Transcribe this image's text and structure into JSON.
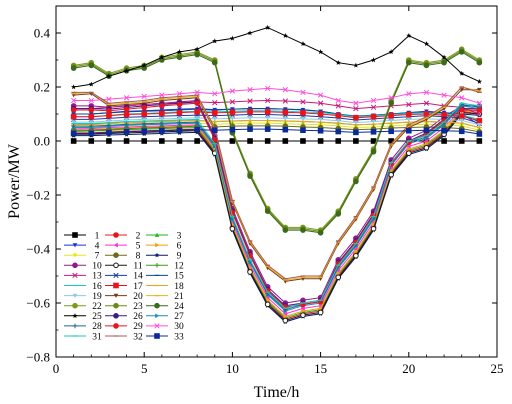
{
  "chart_data": {
    "type": "line",
    "title": "",
    "xlabel": "Time/h",
    "ylabel": "Power/MW",
    "xlim": [
      0,
      25
    ],
    "ylim": [
      -0.8,
      0.5
    ],
    "xticks": [
      0,
      5,
      10,
      15,
      20,
      25
    ],
    "yticks": [
      -0.8,
      -0.6,
      -0.4,
      -0.2,
      0.0,
      0.2,
      0.4
    ],
    "ytick_labels": [
      "−0.8",
      "−0.6",
      "−0.4",
      "−0.2",
      "0.0",
      "0.2",
      "0.4"
    ],
    "grid": false,
    "legend_position": "lower-left",
    "x": [
      1,
      2,
      3,
      4,
      5,
      6,
      7,
      8,
      9,
      10,
      11,
      12,
      13,
      14,
      15,
      16,
      17,
      18,
      19,
      20,
      21,
      22,
      23,
      24
    ],
    "series": [
      {
        "name": "1",
        "color": "#000000",
        "marker": "square",
        "values": [
          0,
          0,
          0,
          0,
          0,
          0,
          0,
          0,
          0,
          0,
          0,
          0,
          0,
          0,
          0,
          0,
          0,
          0,
          0,
          0,
          0,
          0,
          0,
          0
        ]
      },
      {
        "name": "2",
        "color": "#e8141c",
        "marker": "circle",
        "values": [
          0.03,
          0.03,
          0.034,
          0.036,
          0.038,
          0.04,
          0.042,
          0.044,
          -0.04,
          -0.32,
          -0.48,
          -0.6,
          -0.66,
          -0.64,
          -0.63,
          -0.5,
          -0.42,
          -0.32,
          -0.12,
          -0.04,
          -0.02,
          0.03,
          0.11,
          0.1
        ]
      },
      {
        "name": "3",
        "color": "#1fb61f",
        "marker": "triangle-up",
        "values": [
          0.035,
          0.037,
          0.04,
          0.042,
          0.044,
          0.046,
          0.048,
          0.05,
          -0.035,
          -0.315,
          -0.475,
          -0.595,
          -0.655,
          -0.635,
          -0.625,
          -0.495,
          -0.415,
          -0.315,
          -0.115,
          -0.035,
          -0.015,
          0.035,
          0.115,
          0.105
        ]
      },
      {
        "name": "4",
        "color": "#1a2eda",
        "marker": "triangle-down",
        "values": [
          0.1,
          0.1,
          0.105,
          0.11,
          0.112,
          0.115,
          0.118,
          0.12,
          0.116,
          0.118,
          0.12,
          0.12,
          0.118,
          0.116,
          0.11,
          0.1,
          0.09,
          0.095,
          0.1,
          0.105,
          0.11,
          0.105,
          0.1,
          0.06
        ]
      },
      {
        "name": "5",
        "color": "#ff2fd0",
        "marker": "triangle-left",
        "values": [
          0.045,
          0.046,
          0.05,
          0.052,
          0.054,
          0.056,
          0.058,
          0.06,
          -0.025,
          -0.3,
          -0.46,
          -0.58,
          -0.64,
          -0.62,
          -0.61,
          -0.48,
          -0.4,
          -0.3,
          -0.1,
          -0.02,
          0,
          0.05,
          0.12,
          0.11
        ]
      },
      {
        "name": "6",
        "color": "#f39c12",
        "marker": "triangle-right",
        "values": [
          0.04,
          0.041,
          0.045,
          0.048,
          0.05,
          0.052,
          0.054,
          0.056,
          -0.03,
          -0.31,
          -0.47,
          -0.59,
          -0.65,
          -0.63,
          -0.62,
          -0.49,
          -0.41,
          -0.31,
          -0.11,
          -0.03,
          -0.01,
          0.04,
          0.115,
          0.105
        ]
      },
      {
        "name": "7",
        "color": "#e6e61a",
        "marker": "triangle-down",
        "values": [
          0.05,
          0.052,
          0.055,
          0.058,
          0.06,
          0.062,
          0.064,
          0.066,
          0.062,
          0.064,
          0.066,
          0.066,
          0.064,
          0.062,
          0.06,
          0.056,
          0.05,
          0.052,
          0.056,
          0.06,
          0.062,
          0.06,
          0.056,
          0.04
        ]
      },
      {
        "name": "8",
        "color": "#6b6b1a",
        "marker": "circle",
        "values": [
          0.04,
          0.04,
          0.043,
          0.046,
          0.048,
          0.05,
          0.052,
          0.055,
          0.052,
          0.055,
          0.056,
          0.056,
          0.055,
          0.052,
          0.05,
          0.046,
          0.042,
          0.044,
          0.048,
          0.05,
          0.052,
          0.05,
          0.046,
          0.034
        ]
      },
      {
        "name": "9",
        "color": "#0a1a6b",
        "marker": "star",
        "values": [
          0.02,
          0.02,
          0.022,
          0.024,
          0.026,
          0.028,
          0.03,
          0.032,
          -0.05,
          -0.33,
          -0.49,
          -0.61,
          -0.67,
          -0.65,
          -0.64,
          -0.51,
          -0.43,
          -0.33,
          -0.13,
          -0.05,
          -0.03,
          0.02,
          0.1,
          0.095
        ]
      },
      {
        "name": "10",
        "color": "#8e1a8e",
        "marker": "circle",
        "values": [
          0.13,
          0.13,
          0.125,
          0.13,
          0.135,
          0.14,
          0.145,
          0.15,
          0.02,
          -0.25,
          -0.41,
          -0.54,
          -0.6,
          -0.59,
          -0.58,
          -0.44,
          -0.36,
          -0.26,
          -0.07,
          0.01,
          0.04,
          0.09,
          0.13,
          0.13
        ]
      },
      {
        "name": "11",
        "color": "#1a1a1a",
        "marker": "circle-open",
        "values": [
          0.025,
          0.025,
          0.028,
          0.03,
          0.032,
          0.034,
          0.036,
          0.038,
          -0.045,
          -0.325,
          -0.485,
          -0.605,
          -0.665,
          -0.645,
          -0.635,
          -0.505,
          -0.425,
          -0.325,
          -0.125,
          -0.045,
          -0.025,
          0.025,
          0.105,
          0.1
        ]
      },
      {
        "name": "12",
        "color": "#3aa01a",
        "marker": "plus",
        "values": [
          0.06,
          0.062,
          0.065,
          0.068,
          0.07,
          0.072,
          0.074,
          0.076,
          0.072,
          0.074,
          0.076,
          0.076,
          0.074,
          0.072,
          0.07,
          0.066,
          0.06,
          0.062,
          0.066,
          0.07,
          0.072,
          0.07,
          0.066,
          0.05
        ]
      },
      {
        "name": "13",
        "color": "#c81a78",
        "marker": "x",
        "values": [
          0.12,
          0.12,
          0.125,
          0.13,
          0.135,
          0.14,
          0.142,
          0.145,
          0.142,
          0.145,
          0.148,
          0.15,
          0.148,
          0.145,
          0.14,
          0.13,
          0.12,
          0.125,
          0.13,
          0.135,
          0.14,
          0.13,
          0.125,
          0.1
        ]
      },
      {
        "name": "14",
        "color": "#1a3aa8",
        "marker": "x",
        "values": [
          0.08,
          0.08,
          0.084,
          0.088,
          0.09,
          0.092,
          0.094,
          0.096,
          0.094,
          0.096,
          0.098,
          0.098,
          0.096,
          0.094,
          0.09,
          0.085,
          0.078,
          0.082,
          0.086,
          0.09,
          0.094,
          0.09,
          0.086,
          0.065
        ]
      },
      {
        "name": "15",
        "color": "#0e4a8c",
        "marker": "dash",
        "values": [
          0.1,
          0.1,
          0.104,
          0.108,
          0.11,
          0.112,
          0.115,
          0.118,
          0.114,
          0.118,
          0.12,
          0.12,
          0.118,
          0.115,
          0.11,
          0.1,
          0.092,
          0.096,
          0.1,
          0.105,
          0.108,
          0.104,
          0.1,
          0.07
        ]
      },
      {
        "name": "16",
        "color": "#1ac8c8",
        "marker": "dash",
        "values": [
          0.09,
          0.09,
          0.095,
          0.1,
          0.102,
          0.105,
          0.108,
          0.11,
          0.108,
          0.11,
          0.112,
          0.112,
          0.11,
          0.108,
          0.105,
          0.098,
          0.09,
          0.094,
          0.098,
          0.102,
          0.105,
          0.1,
          0.096,
          0.08
        ]
      },
      {
        "name": "17",
        "color": "#e8141c",
        "marker": "square",
        "values": [
          0.09,
          0.09,
          0.094,
          0.098,
          0.1,
          0.102,
          0.105,
          0.108,
          0.104,
          0.106,
          0.108,
          0.108,
          0.106,
          0.104,
          0.1,
          0.094,
          0.086,
          0.09,
          0.094,
          0.098,
          0.1,
          0.096,
          0.092,
          0.075
        ]
      },
      {
        "name": "18",
        "color": "#f5a31a",
        "marker": "dash",
        "values": [
          0.06,
          0.06,
          0.064,
          0.068,
          0.07,
          0.072,
          0.074,
          0.076,
          0.072,
          0.074,
          0.076,
          0.076,
          0.074,
          0.072,
          0.07,
          0.065,
          0.06,
          0.062,
          0.066,
          0.07,
          0.072,
          0.07,
          0.066,
          0.05
        ]
      },
      {
        "name": "19",
        "color": "#8ecae6",
        "marker": "triangle-down",
        "values": [
          0.07,
          0.07,
          0.074,
          0.078,
          0.08,
          0.082,
          0.084,
          0.086,
          0.082,
          0.084,
          0.086,
          0.086,
          0.084,
          0.082,
          0.08,
          0.075,
          0.068,
          0.072,
          0.076,
          0.08,
          0.082,
          0.08,
          0.076,
          0.06
        ]
      },
      {
        "name": "20",
        "color": "#7a3a1a",
        "marker": "triangle-down",
        "values": [
          0.17,
          0.175,
          0.13,
          0.135,
          0.14,
          0.15,
          0.155,
          0.16,
          0.04,
          -0.23,
          -0.38,
          -0.47,
          -0.52,
          -0.51,
          -0.51,
          -0.38,
          -0.29,
          -0.18,
          -0.02,
          0.05,
          0.08,
          0.12,
          0.19,
          0.19
        ]
      },
      {
        "name": "21",
        "color": "#e8b41a",
        "marker": "dash",
        "values": [
          0.175,
          0.18,
          0.135,
          0.14,
          0.145,
          0.155,
          0.16,
          0.165,
          0.045,
          -0.225,
          -0.375,
          -0.465,
          -0.515,
          -0.505,
          -0.505,
          -0.375,
          -0.285,
          -0.175,
          -0.015,
          0.055,
          0.085,
          0.125,
          0.2,
          0.185
        ]
      },
      {
        "name": "22",
        "color": "#7a9a1a",
        "marker": "circle",
        "values": [
          0.28,
          0.29,
          0.25,
          0.27,
          0.28,
          0.31,
          0.32,
          0.33,
          0.3,
          0.04,
          -0.12,
          -0.25,
          -0.32,
          -0.32,
          -0.33,
          -0.26,
          -0.14,
          -0.03,
          0.15,
          0.3,
          0.29,
          0.3,
          0.34,
          0.3
        ]
      },
      {
        "name": "23",
        "color": "#6b8a1a",
        "marker": "circle",
        "values": [
          0.275,
          0.285,
          0.245,
          0.265,
          0.275,
          0.305,
          0.315,
          0.325,
          0.295,
          0.035,
          -0.125,
          -0.255,
          -0.325,
          -0.325,
          -0.335,
          -0.265,
          -0.145,
          -0.035,
          0.145,
          0.295,
          0.285,
          0.295,
          0.335,
          0.295
        ]
      },
      {
        "name": "24",
        "color": "#3a6a1a",
        "marker": "circle",
        "values": [
          0.27,
          0.28,
          0.24,
          0.26,
          0.27,
          0.3,
          0.31,
          0.32,
          0.29,
          0.03,
          -0.13,
          -0.26,
          -0.33,
          -0.33,
          -0.34,
          -0.27,
          -0.15,
          -0.04,
          0.14,
          0.29,
          0.28,
          0.29,
          0.33,
          0.29
        ]
      },
      {
        "name": "25",
        "color": "#000000",
        "marker": "star",
        "values": [
          0.2,
          0.21,
          0.24,
          0.26,
          0.28,
          0.31,
          0.33,
          0.34,
          0.37,
          0.38,
          0.4,
          0.42,
          0.39,
          0.36,
          0.33,
          0.29,
          0.28,
          0.3,
          0.33,
          0.39,
          0.36,
          0.31,
          0.25,
          0.22
        ]
      },
      {
        "name": "26",
        "color": "#3a1a8e",
        "marker": "circle",
        "values": [
          0.12,
          0.12,
          0.118,
          0.124,
          0.13,
          0.135,
          0.14,
          0.145,
          0.01,
          -0.26,
          -0.42,
          -0.55,
          -0.61,
          -0.6,
          -0.59,
          -0.45,
          -0.37,
          -0.27,
          -0.08,
          0,
          0.03,
          0.08,
          0.12,
          0.12
        ]
      },
      {
        "name": "27",
        "color": "#1a8ec8",
        "marker": "triangle-right",
        "values": [
          0.05,
          0.05,
          0.054,
          0.058,
          0.06,
          0.062,
          0.064,
          0.066,
          -0.02,
          -0.29,
          -0.45,
          -0.57,
          -0.63,
          -0.61,
          -0.6,
          -0.47,
          -0.39,
          -0.29,
          -0.09,
          -0.01,
          0.01,
          0.06,
          0.13,
          0.12
        ]
      },
      {
        "name": "28",
        "color": "#1a6b8e",
        "marker": "plus",
        "values": [
          0.055,
          0.055,
          0.058,
          0.062,
          0.064,
          0.066,
          0.068,
          0.07,
          -0.015,
          -0.285,
          -0.445,
          -0.565,
          -0.625,
          -0.605,
          -0.595,
          -0.465,
          -0.385,
          -0.285,
          -0.085,
          -0.005,
          0.015,
          0.065,
          0.135,
          0.125
        ]
      },
      {
        "name": "29",
        "color": "#e8141c",
        "marker": "circle",
        "values": [
          0.115,
          0.115,
          0.112,
          0.118,
          0.124,
          0.13,
          0.135,
          0.14,
          0.005,
          -0.265,
          -0.425,
          -0.555,
          -0.615,
          -0.605,
          -0.595,
          -0.455,
          -0.375,
          -0.275,
          -0.085,
          -0.005,
          0.025,
          0.075,
          0.115,
          0.115
        ]
      },
      {
        "name": "30",
        "color": "#ff4fd8",
        "marker": "x",
        "values": [
          0.15,
          0.15,
          0.155,
          0.16,
          0.165,
          0.17,
          0.175,
          0.18,
          0.175,
          0.185,
          0.19,
          0.195,
          0.19,
          0.18,
          0.17,
          0.15,
          0.14,
          0.15,
          0.16,
          0.175,
          0.18,
          0.17,
          0.16,
          0.14
        ]
      },
      {
        "name": "31",
        "color": "#1ac8b8",
        "marker": "dash",
        "values": [
          0.065,
          0.065,
          0.068,
          0.072,
          0.074,
          0.076,
          0.078,
          0.08,
          -0.01,
          -0.28,
          -0.44,
          -0.56,
          -0.62,
          -0.6,
          -0.59,
          -0.46,
          -0.38,
          -0.28,
          -0.08,
          0,
          0.02,
          0.07,
          0.14,
          0.13
        ]
      },
      {
        "name": "32",
        "color": "#a85a5a",
        "marker": "dash",
        "values": [
          0.18,
          0.18,
          0.14,
          0.145,
          0.15,
          0.16,
          0.165,
          0.17,
          0.05,
          -0.22,
          -0.37,
          -0.46,
          -0.51,
          -0.5,
          -0.5,
          -0.37,
          -0.28,
          -0.17,
          -0.01,
          0.06,
          0.09,
          0.13,
          0.2,
          0.18
        ]
      },
      {
        "name": "33",
        "color": "#0a2a9a",
        "marker": "square",
        "values": [
          0.028,
          0.028,
          0.031,
          0.034,
          0.036,
          0.038,
          0.04,
          0.042,
          0.04,
          0.042,
          0.044,
          0.044,
          0.042,
          0.04,
          0.038,
          0.035,
          0.032,
          0.034,
          0.036,
          0.038,
          0.04,
          0.038,
          0.036,
          0.026
        ]
      }
    ]
  }
}
